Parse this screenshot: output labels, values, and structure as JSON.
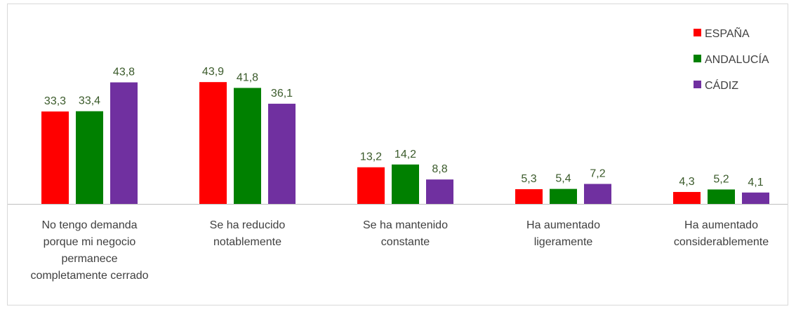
{
  "chart_data": {
    "type": "bar",
    "categories": [
      "No tengo demanda porque mi negocio permanece completamente cerrado",
      "Se ha reducido notablemente",
      "Se ha mantenido constante",
      "Ha aumentado ligeramente",
      "Ha aumentado considerablemente"
    ],
    "series": [
      {
        "name": "ESPAÑA",
        "color": "#ff0000",
        "values": [
          33.3,
          43.9,
          13.2,
          5.3,
          4.3
        ],
        "value_labels": [
          "33,3",
          "43,9",
          "13,2",
          "5,3",
          "4,3"
        ]
      },
      {
        "name": "ANDALUCÍA",
        "color": "#008000",
        "values": [
          33.4,
          41.8,
          14.2,
          5.4,
          5.2
        ],
        "value_labels": [
          "33,4",
          "41,8",
          "14,2",
          "5,4",
          "5,2"
        ]
      },
      {
        "name": "CÁDIZ",
        "color": "#7030a0",
        "values": [
          43.8,
          36.1,
          8.8,
          7.2,
          4.1
        ],
        "value_labels": [
          "43,8",
          "36,1",
          "8,8",
          "7,2",
          "4,1"
        ]
      }
    ],
    "legend": "top-right"
  }
}
